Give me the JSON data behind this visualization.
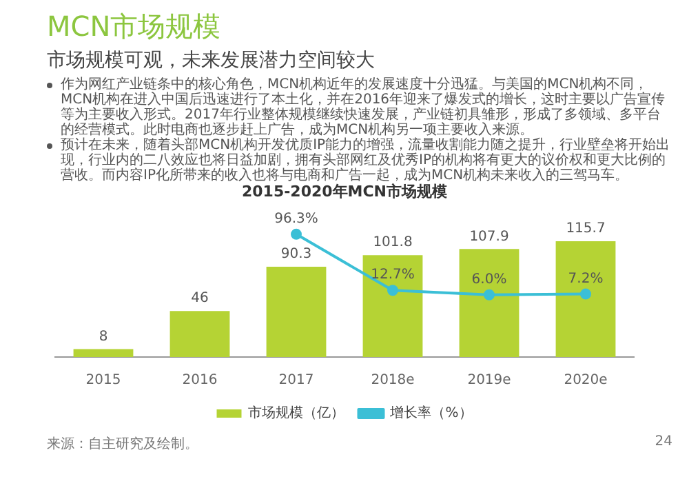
{
  "chart_data": {
    "type": "bar",
    "title": "2015-2020年MCN市场规模",
    "categories": [
      "2015",
      "2016",
      "2017",
      "2018e",
      "2019e",
      "2020e"
    ],
    "series": [
      {
        "name": "市场规模（亿）",
        "type": "bar",
        "color": "#b5d334",
        "values": [
          8,
          46,
          90.3,
          101.8,
          107.9,
          115.7
        ]
      },
      {
        "name": "增长率（%）",
        "type": "line",
        "axis": "y2",
        "color": "#3bbfd6",
        "values": [
          null,
          null,
          96.3,
          12.7,
          6.0,
          7.2
        ],
        "value_labels": [
          null,
          null,
          "96.3%",
          "12.7%",
          "6.0%",
          "7.2%"
        ]
      }
    ],
    "data_labels": true,
    "legend": "bottom",
    "marker": "circle",
    "grid": false,
    "annotations": [
      "MCN市场规模",
      "市场规模可观，未来发展潜力空间较大",
      "作为网红产业链条中的核心角色，MCN机构近年的发展速度十分迅猛。与美国的MCN机构不同，MCN机构在进入中国后迅速进行了本土化，并在2016年迎来了爆发式的增长，这时主要以广告宣传等为主要收入形式。2017年行业整体规模继续快速发展，产业链初具雏形，形成了多领域、多平台的经营模式。此时电商也逐步赶上广告，成为MCN机构另一项主要收入来源。",
      "预计在未来，随着头部MCN机构开发优质IP能力的增强，流量收割能力随之提升，行业壁垒将开始出现，行业内的二八效应也将日益加剧，拥有头部网红及优秀IP的机构将有更大的议价权和更大比例的营收。而内容IP化所带来的收入也将与电商和广告一起，成为MCN机构未来收入的三驾马车。",
      "来源：自主研究及绘制。",
      "24"
    ]
  }
}
